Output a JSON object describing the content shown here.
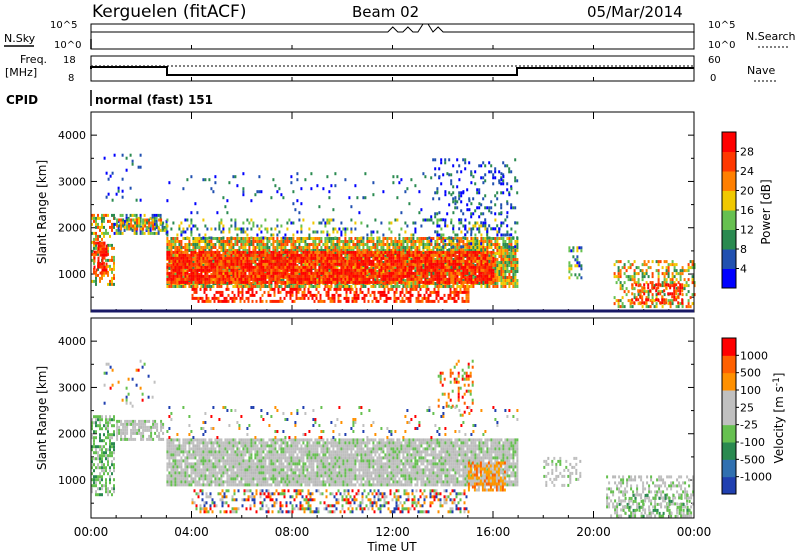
{
  "header": {
    "station": "Kerguelen (fitACF)",
    "beam": "Beam 02",
    "date": "05/Mar/2014"
  },
  "strip_labels": {
    "nsky": "N.Sky",
    "nsky_ticks": [
      "10^5",
      "10^0"
    ],
    "nsearch": "N.Search",
    "nsearch_ticks": [
      "10^5",
      "10^0"
    ],
    "freq": "Freq.",
    "freq_unit": "[MHz]",
    "freq_ticks": [
      "18",
      "8"
    ],
    "nave": "Nave",
    "nave_ticks": [
      "60",
      "0"
    ],
    "cpid": "CPID",
    "cpid_value": "normal (fast) 151"
  },
  "chart_data": [
    {
      "type": "heatmap",
      "panel": "power",
      "ylabel": "Slant Range [km]",
      "y_ticks": [
        1000,
        2000,
        3000,
        4000
      ],
      "ylim": [
        180,
        4500
      ],
      "x_ticks": [
        "00:00",
        "04:00",
        "08:00",
        "12:00",
        "16:00",
        "20:00",
        "00:00"
      ],
      "xlim": [
        0,
        24
      ],
      "colorbar_label": "Power [dB]",
      "colorbar_ticks": [
        28,
        24,
        20,
        16,
        12,
        8,
        4
      ],
      "colorbar_colors": [
        "#0000ff",
        "#2050b0",
        "#2a8a50",
        "#66c050",
        "#f0c800",
        "#ff7f00",
        "#ff3800",
        "#ff0000"
      ]
    },
    {
      "type": "heatmap",
      "panel": "velocity",
      "ylabel": "Slant Range [km]",
      "y_ticks": [
        1000,
        2000,
        3000,
        4000
      ],
      "ylim": [
        180,
        4500
      ],
      "x_ticks": [
        "00:00",
        "04:00",
        "08:00",
        "12:00",
        "16:00",
        "20:00",
        "00:00"
      ],
      "xlim": [
        0,
        24
      ],
      "xlabel": "Time UT",
      "colorbar_label": "Velocity [m s^-1]",
      "colorbar_ticks": [
        "1000",
        "500",
        "100",
        "25",
        "-25",
        "-100",
        "-500",
        "-1000"
      ],
      "colorbar_colors": [
        "#2040b0",
        "#3070b0",
        "#2a8a50",
        "#66c050",
        "#c0c0c0",
        "#c0c0c0",
        "#ff9000",
        "#ff6000",
        "#ff0000"
      ]
    }
  ]
}
